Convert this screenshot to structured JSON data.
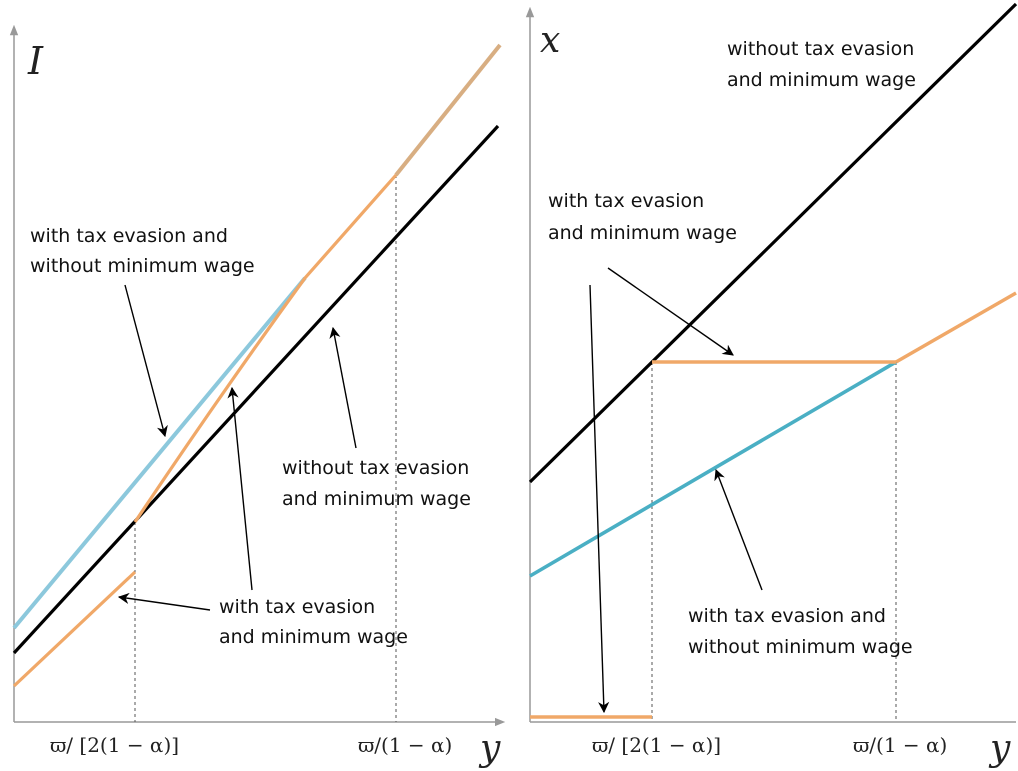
{
  "colors": {
    "black_line": "#000000",
    "orange_line": "#F0A868",
    "blue_left": "#8CC8DC",
    "blue_right": "#4AAFC4",
    "axis": "#999999",
    "arrow": "#000000"
  },
  "left_panel": {
    "y_axis_label": "I",
    "x_axis_label": "y",
    "tick_1": "ϖ/ [2(1 − α)]",
    "tick_2": "ϖ/(1 − α)",
    "annot_evasion_no_min": [
      "with tax evasion and",
      "without minimum wage"
    ],
    "annot_no_evasion": [
      "without tax evasion",
      "and minimum wage"
    ],
    "annot_evasion_min": [
      "with tax evasion",
      "and minimum wage"
    ]
  },
  "right_panel": {
    "y_axis_label": "x",
    "x_axis_label": "y",
    "tick_1": "ϖ/ [2(1 − α)]",
    "tick_2": "ϖ/(1 − α)",
    "annot_no_evasion": [
      "without tax evasion",
      "and minimum wage"
    ],
    "annot_evasion_min": [
      "with tax evasion",
      "and minimum wage"
    ],
    "annot_evasion_no_min": [
      "with tax evasion and",
      "without minimum wage"
    ]
  }
}
